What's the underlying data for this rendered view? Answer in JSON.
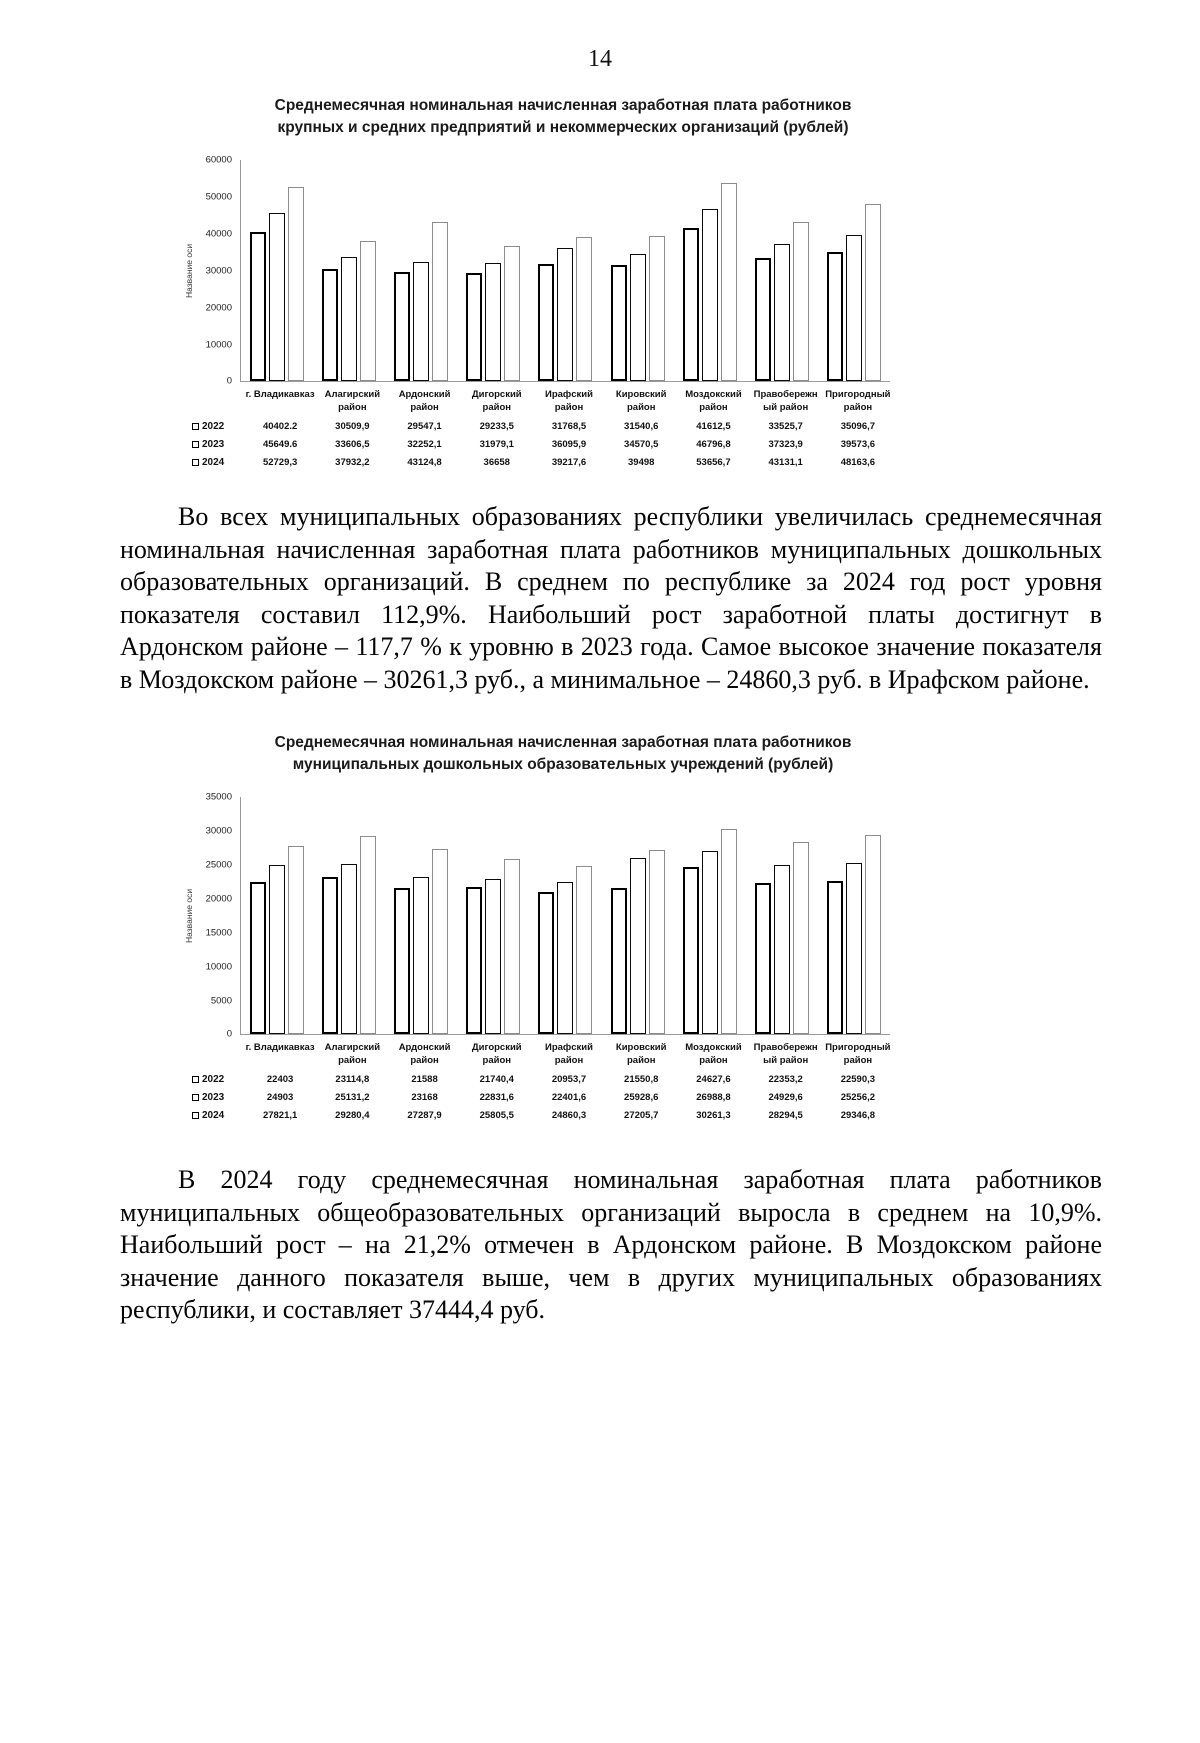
{
  "page": {
    "number": "14"
  },
  "paragraphs": {
    "p1": "Во всех муниципальных образованиях республики увеличилась среднемесячная номинальная начисленная заработная плата работников муниципальных дошкольных образовательных организаций. В среднем по республике за 2024 год рост уровня показателя составил 112,9%. Наибольший рост заработной платы достигнут в Ардонском районе – 117,7 % к уровню в 2023 года. Самое высокое значение показателя в Моздокском районе – 30261,3 руб., а минимальное – 24860,3 руб. в Ирафском районе.",
    "p2": "В 2024 году среднемесячная номинальная заработная плата работников муниципальных общеобразовательных организаций выросла в среднем на 10,9%. Наибольший рост – на 21,2% отмечен в Ардонском районе. В Моздокском районе значение данного показателя выше, чем в других муниципальных образованиях республики, и составляет 37444,4 руб."
  },
  "chart_data": [
    {
      "type": "bar",
      "title": "Среднемесячная номинальная начисленная заработная плата работников крупных и средних предприятий и некоммерческих организаций (рублей)",
      "xlabel": "",
      "ylabel": "Название оси",
      "ylim": [
        0,
        60000
      ],
      "ytick_step": 10000,
      "grid": false,
      "legend_position": "table-left",
      "bar_fill": "#ffffff",
      "bar_border_colors": [
        "#000000",
        "#0a0a0a",
        "#8c8c8c"
      ],
      "categories": [
        "г. Владикавказ",
        "Алагирский район",
        "Ардонский район",
        "Дигорский район",
        "Ирафский район",
        "Кировский район",
        "Моздокский район",
        "Правобережный район",
        "Пригородный район"
      ],
      "series": [
        {
          "name": "2022",
          "values": [
            40402.2,
            30509.9,
            29547.1,
            29233.5,
            31768.5,
            31540.6,
            41612.5,
            33525.7,
            35096.7
          ],
          "display": [
            "40402.2",
            "30509,9",
            "29547,1",
            "29233,5",
            "31768,5",
            "31540,6",
            "41612,5",
            "33525,7",
            "35096,7"
          ]
        },
        {
          "name": "2023",
          "values": [
            45649.6,
            33606.5,
            32252.1,
            31979.1,
            36095.9,
            34570.5,
            46796.8,
            37323.9,
            39573.6
          ],
          "display": [
            "45649.6",
            "33606,5",
            "32252,1",
            "31979,1",
            "36095,9",
            "34570,5",
            "46796,8",
            "37323,9",
            "39573,6"
          ]
        },
        {
          "name": "2024",
          "values": [
            52729.3,
            37932.2,
            43124.8,
            36658,
            39217.6,
            39498,
            53656.7,
            43131.1,
            48163.6
          ],
          "display": [
            "52729,3",
            "37932,2",
            "43124,8",
            "36658",
            "39217,6",
            "39498",
            "53656,7",
            "43131,1",
            "48163,6"
          ]
        }
      ]
    },
    {
      "type": "bar",
      "title": "Среднемесячная номинальная начисленная заработная плата работников муниципальных дошкольных образовательных учреждений (рублей)",
      "xlabel": "",
      "ylabel": "Название оси",
      "ylim": [
        0,
        35000
      ],
      "ytick_step": 5000,
      "grid": false,
      "legend_position": "table-left",
      "bar_fill": "#ffffff",
      "bar_border_colors": [
        "#000000",
        "#0a0a0a",
        "#8c8c8c"
      ],
      "categories": [
        "г. Владикавказ",
        "Алагирский район",
        "Ардонский район",
        "Дигорский район",
        "Ирафский район",
        "Кировский район",
        "Моздокский район",
        "Правобережный район",
        "Пригородный район"
      ],
      "series": [
        {
          "name": "2022",
          "values": [
            22403,
            23114.8,
            21588,
            21740.4,
            20953.7,
            21550.8,
            24627.6,
            22353.2,
            22590.3
          ],
          "display": [
            "22403",
            "23114,8",
            "21588",
            "21740,4",
            "20953,7",
            "21550,8",
            "24627,6",
            "22353,2",
            "22590,3"
          ]
        },
        {
          "name": "2023",
          "values": [
            24903,
            25131.2,
            23168,
            22831.6,
            22401.6,
            25928.6,
            26988.8,
            24929.6,
            25256.2
          ],
          "display": [
            "24903",
            "25131,2",
            "23168",
            "22831,6",
            "22401,6",
            "25928,6",
            "26988,8",
            "24929,6",
            "25256,2"
          ]
        },
        {
          "name": "2024",
          "values": [
            27821.1,
            29280.4,
            27287.9,
            25805.5,
            24860.3,
            27205.7,
            30261.3,
            28294.5,
            29346.8
          ],
          "display": [
            "27821,1",
            "29280,4",
            "27287,9",
            "25805,5",
            "24860,3",
            "27205,7",
            "30261,3",
            "28294,5",
            "29346,8"
          ]
        }
      ]
    }
  ]
}
